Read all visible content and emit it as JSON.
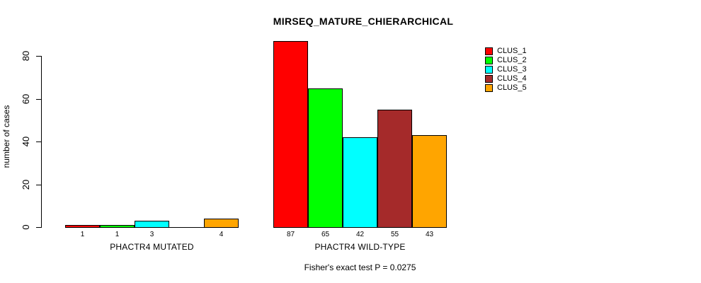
{
  "chart_data": {
    "type": "bar",
    "title": "MIRSEQ_MATURE_CHIERARCHICAL",
    "ylabel": "number of cases",
    "yticks": [
      0,
      20,
      40,
      60,
      80
    ],
    "ylim": [
      0,
      80
    ],
    "grid": false,
    "legend_position": "right",
    "series": [
      "CLUS_1",
      "CLUS_2",
      "CLUS_3",
      "CLUS_4",
      "CLUS_5"
    ],
    "colors": [
      "#FF0000",
      "#00FF00",
      "#00FFFF",
      "#A52A2A",
      "#FFA500"
    ],
    "groups": [
      {
        "label": "PHACTR4 MUTATED",
        "values": [
          1,
          1,
          3,
          0,
          4
        ],
        "bar_labels": [
          "1",
          "1",
          "3",
          "",
          "4"
        ]
      },
      {
        "label": "PHACTR4 WILD-TYPE",
        "values": [
          87,
          65,
          42,
          55,
          43
        ],
        "bar_labels": [
          "87",
          "65",
          "42",
          "55",
          "43"
        ]
      }
    ],
    "footnote": "Fisher's exact test P = 0.0275"
  }
}
